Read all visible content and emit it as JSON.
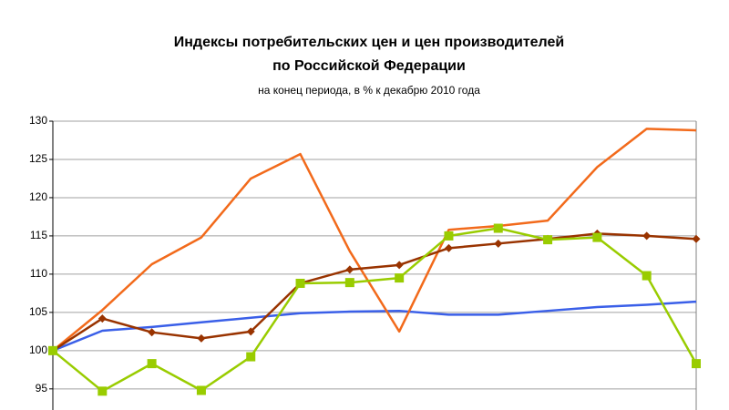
{
  "chart_data": {
    "type": "line",
    "title": [
      "Индексы потребительских цен и цен производителей",
      "по Российской Федерации"
    ],
    "subtitle": "на конец периода, в % к декабрю 2010 года",
    "categories": [
      null,
      null,
      null,
      null,
      null,
      null,
      null,
      null,
      null,
      null,
      null,
      null,
      null,
      null
    ],
    "series": [
      {
        "color": "#3a5fe8",
        "marker": "none",
        "values": [
          100,
          102.6,
          103.1,
          103.7,
          104.3,
          104.9,
          105.1,
          105.2,
          104.7,
          104.7,
          105.2,
          105.7,
          106,
          106.4
        ]
      },
      {
        "color": "#f26a1b",
        "marker": "none",
        "values": [
          100,
          105.3,
          111.3,
          114.8,
          122.5,
          125.7,
          113,
          102.5,
          115.8,
          116.3,
          117,
          124,
          129,
          128.8
        ]
      },
      {
        "color": "#993300",
        "marker": "diamond",
        "values": [
          100,
          104.2,
          102.4,
          101.6,
          102.5,
          108.8,
          110.6,
          111.2,
          113.4,
          114,
          114.6,
          115.3,
          115,
          114.6
        ]
      },
      {
        "color": "#99cc00",
        "marker": "square",
        "values": [
          100,
          94.7,
          98.3,
          94.8,
          99.2,
          108.8,
          108.9,
          109.5,
          115,
          116,
          114.5,
          114.8,
          109.8,
          98.3
        ]
      }
    ],
    "ylim": [
      92,
      130
    ],
    "yticks": [
      95,
      100,
      105,
      110,
      115,
      120,
      125,
      130
    ],
    "grid": true
  }
}
